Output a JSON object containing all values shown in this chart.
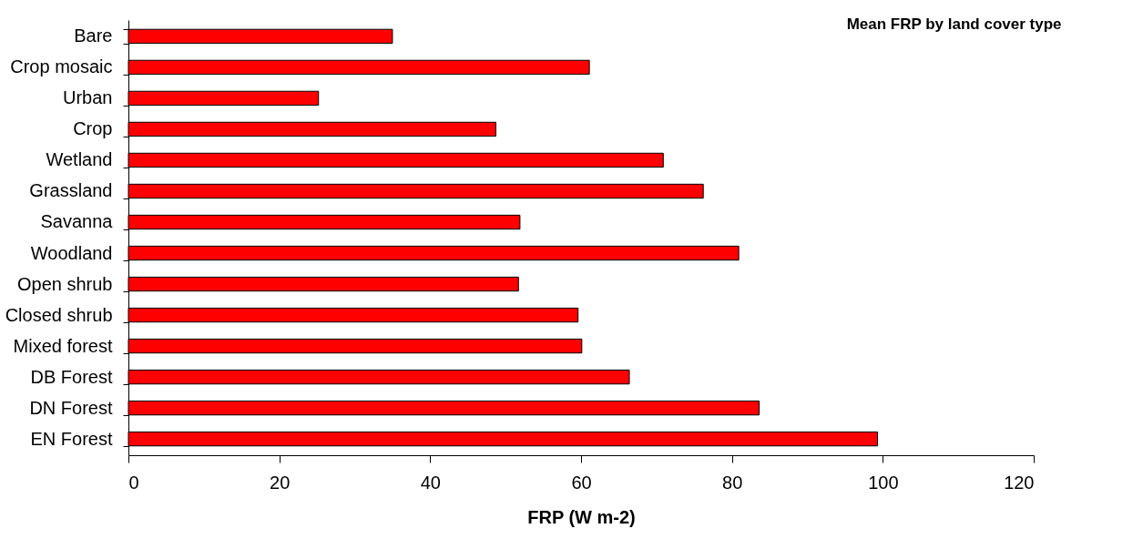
{
  "chart_data": {
    "type": "bar",
    "orientation": "horizontal",
    "title": "Mean FRP by land cover type",
    "xlabel": "FRP (W m-2)",
    "categories": [
      "Bare",
      "Crop mosaic",
      "Urban",
      "Crop",
      "Wetland",
      "Grassland",
      "Savanna",
      "Woodland",
      "Open shrub",
      "Closed shrub",
      "Mixed forest",
      "DB Forest",
      "DN Forest",
      "EN Forest"
    ],
    "values": [
      35.0,
      61.1,
      25.2,
      48.7,
      70.9,
      76.2,
      51.9,
      80.9,
      51.7,
      59.6,
      60.1,
      66.4,
      83.6,
      99.3
    ],
    "color": "#ff0000",
    "xlim": [
      0,
      120
    ],
    "xticks": [
      0,
      20,
      40,
      60,
      80,
      100,
      120
    ]
  }
}
